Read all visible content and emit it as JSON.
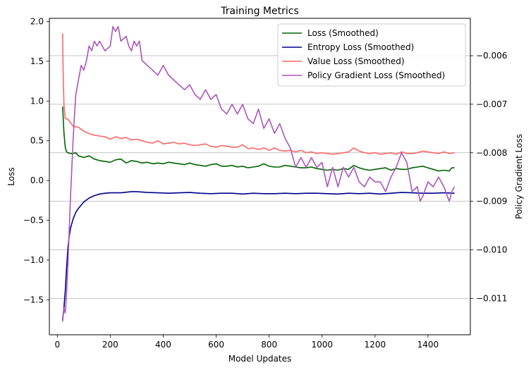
{
  "chart_data": {
    "type": "line",
    "title": "Training Metrics",
    "xlabel": "Model Updates",
    "ylabel_left": "Loss",
    "ylabel_right": "Policy Gradient Loss",
    "xlim": [
      -30,
      1560
    ],
    "ylim_left": [
      -1.94,
      2.04
    ],
    "ylim_right": [
      -0.01175,
      -0.00523
    ],
    "x_ticks": [
      0,
      200,
      400,
      600,
      800,
      1000,
      1200,
      1400
    ],
    "y_left_ticks": [
      -1.5,
      -1.0,
      -0.5,
      0.0,
      0.5,
      1.0,
      1.5,
      2.0
    ],
    "y_right_ticks": [
      -0.011,
      -0.01,
      -0.009,
      -0.008,
      -0.007,
      -0.006
    ],
    "grid": "horizontal lines at right-axis ticks",
    "legend_position": "upper-right",
    "series": [
      {
        "name": "Loss (Smoothed)",
        "axis": "left",
        "color": "#006400",
        "points": [
          [
            20,
            0.93
          ],
          [
            25,
            0.6
          ],
          [
            30,
            0.42
          ],
          [
            35,
            0.36
          ],
          [
            40,
            0.35
          ],
          [
            50,
            0.34
          ],
          [
            60,
            0.34
          ],
          [
            70,
            0.35
          ],
          [
            80,
            0.31
          ],
          [
            100,
            0.29
          ],
          [
            120,
            0.31
          ],
          [
            140,
            0.27
          ],
          [
            160,
            0.25
          ],
          [
            180,
            0.24
          ],
          [
            200,
            0.23
          ],
          [
            220,
            0.26
          ],
          [
            240,
            0.27
          ],
          [
            260,
            0.22
          ],
          [
            280,
            0.25
          ],
          [
            300,
            0.24
          ],
          [
            320,
            0.22
          ],
          [
            340,
            0.23
          ],
          [
            360,
            0.21
          ],
          [
            380,
            0.22
          ],
          [
            400,
            0.21
          ],
          [
            420,
            0.23
          ],
          [
            440,
            0.22
          ],
          [
            460,
            0.21
          ],
          [
            480,
            0.2
          ],
          [
            500,
            0.22
          ],
          [
            520,
            0.2
          ],
          [
            540,
            0.19
          ],
          [
            560,
            0.18
          ],
          [
            580,
            0.2
          ],
          [
            600,
            0.21
          ],
          [
            620,
            0.18
          ],
          [
            640,
            0.18
          ],
          [
            660,
            0.19
          ],
          [
            680,
            0.17
          ],
          [
            700,
            0.18
          ],
          [
            720,
            0.16
          ],
          [
            740,
            0.17
          ],
          [
            760,
            0.18
          ],
          [
            780,
            0.21
          ],
          [
            800,
            0.18
          ],
          [
            820,
            0.17
          ],
          [
            840,
            0.17
          ],
          [
            860,
            0.19
          ],
          [
            880,
            0.18
          ],
          [
            900,
            0.17
          ],
          [
            920,
            0.16
          ],
          [
            940,
            0.16
          ],
          [
            960,
            0.17
          ],
          [
            980,
            0.15
          ],
          [
            1000,
            0.14
          ],
          [
            1020,
            0.13
          ],
          [
            1040,
            0.14
          ],
          [
            1060,
            0.13
          ],
          [
            1080,
            0.15
          ],
          [
            1100,
            0.14
          ],
          [
            1120,
            0.19
          ],
          [
            1140,
            0.16
          ],
          [
            1160,
            0.14
          ],
          [
            1180,
            0.13
          ],
          [
            1200,
            0.14
          ],
          [
            1220,
            0.15
          ],
          [
            1240,
            0.16
          ],
          [
            1260,
            0.13
          ],
          [
            1280,
            0.15
          ],
          [
            1300,
            0.14
          ],
          [
            1320,
            0.14
          ],
          [
            1340,
            0.16
          ],
          [
            1360,
            0.17
          ],
          [
            1380,
            0.18
          ],
          [
            1400,
            0.16
          ],
          [
            1420,
            0.14
          ],
          [
            1440,
            0.12
          ],
          [
            1460,
            0.13
          ],
          [
            1480,
            0.12
          ],
          [
            1490,
            0.16
          ],
          [
            1500,
            0.16
          ]
        ]
      },
      {
        "name": "Entropy Loss (Smoothed)",
        "axis": "left",
        "color": "#00008B",
        "points": [
          [
            20,
            -1.75
          ],
          [
            25,
            -1.6
          ],
          [
            30,
            -1.4
          ],
          [
            35,
            -1.1
          ],
          [
            40,
            -0.85
          ],
          [
            45,
            -0.7
          ],
          [
            50,
            -0.6
          ],
          [
            60,
            -0.48
          ],
          [
            70,
            -0.4
          ],
          [
            80,
            -0.35
          ],
          [
            90,
            -0.31
          ],
          [
            100,
            -0.27
          ],
          [
            120,
            -0.22
          ],
          [
            140,
            -0.19
          ],
          [
            160,
            -0.17
          ],
          [
            180,
            -0.16
          ],
          [
            200,
            -0.155
          ],
          [
            240,
            -0.155
          ],
          [
            280,
            -0.14
          ],
          [
            300,
            -0.14
          ],
          [
            340,
            -0.15
          ],
          [
            380,
            -0.155
          ],
          [
            420,
            -0.16
          ],
          [
            460,
            -0.155
          ],
          [
            500,
            -0.15
          ],
          [
            540,
            -0.16
          ],
          [
            580,
            -0.165
          ],
          [
            620,
            -0.16
          ],
          [
            660,
            -0.16
          ],
          [
            700,
            -0.17
          ],
          [
            740,
            -0.16
          ],
          [
            780,
            -0.165
          ],
          [
            820,
            -0.165
          ],
          [
            860,
            -0.16
          ],
          [
            900,
            -0.165
          ],
          [
            940,
            -0.16
          ],
          [
            980,
            -0.16
          ],
          [
            1020,
            -0.165
          ],
          [
            1060,
            -0.17
          ],
          [
            1100,
            -0.16
          ],
          [
            1140,
            -0.165
          ],
          [
            1180,
            -0.16
          ],
          [
            1220,
            -0.17
          ],
          [
            1260,
            -0.16
          ],
          [
            1300,
            -0.15
          ],
          [
            1340,
            -0.155
          ],
          [
            1380,
            -0.16
          ],
          [
            1420,
            -0.16
          ],
          [
            1460,
            -0.155
          ],
          [
            1500,
            -0.16
          ]
        ]
      },
      {
        "name": "Value Loss (Smoothed)",
        "axis": "left",
        "color": "#FF6666",
        "points": [
          [
            20,
            1.85
          ],
          [
            22,
            1.4
          ],
          [
            25,
            0.95
          ],
          [
            30,
            0.78
          ],
          [
            40,
            0.77
          ],
          [
            50,
            0.73
          ],
          [
            60,
            0.68
          ],
          [
            80,
            0.67
          ],
          [
            100,
            0.62
          ],
          [
            120,
            0.59
          ],
          [
            140,
            0.57
          ],
          [
            160,
            0.56
          ],
          [
            180,
            0.55
          ],
          [
            200,
            0.52
          ],
          [
            220,
            0.55
          ],
          [
            240,
            0.53
          ],
          [
            260,
            0.54
          ],
          [
            280,
            0.51
          ],
          [
            300,
            0.52
          ],
          [
            320,
            0.5
          ],
          [
            340,
            0.48
          ],
          [
            360,
            0.47
          ],
          [
            380,
            0.5
          ],
          [
            400,
            0.46
          ],
          [
            420,
            0.47
          ],
          [
            440,
            0.48
          ],
          [
            460,
            0.46
          ],
          [
            480,
            0.47
          ],
          [
            500,
            0.45
          ],
          [
            520,
            0.44
          ],
          [
            540,
            0.45
          ],
          [
            560,
            0.46
          ],
          [
            580,
            0.43
          ],
          [
            600,
            0.42
          ],
          [
            620,
            0.44
          ],
          [
            640,
            0.43
          ],
          [
            660,
            0.42
          ],
          [
            680,
            0.42
          ],
          [
            700,
            0.45
          ],
          [
            720,
            0.4
          ],
          [
            740,
            0.41
          ],
          [
            760,
            0.39
          ],
          [
            780,
            0.41
          ],
          [
            800,
            0.38
          ],
          [
            820,
            0.41
          ],
          [
            840,
            0.38
          ],
          [
            860,
            0.37
          ],
          [
            880,
            0.38
          ],
          [
            900,
            0.36
          ],
          [
            920,
            0.38
          ],
          [
            940,
            0.35
          ],
          [
            960,
            0.36
          ],
          [
            980,
            0.34
          ],
          [
            1000,
            0.35
          ],
          [
            1020,
            0.34
          ],
          [
            1040,
            0.33
          ],
          [
            1060,
            0.34
          ],
          [
            1080,
            0.35
          ],
          [
            1100,
            0.36
          ],
          [
            1120,
            0.41
          ],
          [
            1140,
            0.37
          ],
          [
            1160,
            0.35
          ],
          [
            1180,
            0.34
          ],
          [
            1200,
            0.35
          ],
          [
            1220,
            0.33
          ],
          [
            1240,
            0.34
          ],
          [
            1260,
            0.35
          ],
          [
            1280,
            0.33
          ],
          [
            1300,
            0.36
          ],
          [
            1320,
            0.34
          ],
          [
            1340,
            0.34
          ],
          [
            1360,
            0.35
          ],
          [
            1380,
            0.37
          ],
          [
            1400,
            0.36
          ],
          [
            1420,
            0.35
          ],
          [
            1440,
            0.34
          ],
          [
            1460,
            0.36
          ],
          [
            1480,
            0.34
          ],
          [
            1500,
            0.35
          ]
        ]
      },
      {
        "name": "Policy Gradient Loss (Smoothed)",
        "axis": "right",
        "color": "#AA55BB",
        "points": [
          [
            20,
            -0.01148
          ],
          [
            25,
            -0.0112
          ],
          [
            30,
            -0.0113
          ],
          [
            35,
            -0.0109
          ],
          [
            40,
            -0.0103
          ],
          [
            45,
            -0.0096
          ],
          [
            50,
            -0.0089
          ],
          [
            55,
            -0.0083
          ],
          [
            60,
            -0.0077
          ],
          [
            65,
            -0.0072
          ],
          [
            70,
            -0.0068
          ],
          [
            80,
            -0.0065
          ],
          [
            90,
            -0.0062
          ],
          [
            100,
            -0.0063
          ],
          [
            110,
            -0.0061
          ],
          [
            120,
            -0.0058
          ],
          [
            130,
            -0.0059
          ],
          [
            140,
            -0.0057
          ],
          [
            150,
            -0.0058
          ],
          [
            160,
            -0.0057
          ],
          [
            180,
            -0.0059
          ],
          [
            200,
            -0.0058
          ],
          [
            210,
            -0.0054
          ],
          [
            220,
            -0.0055
          ],
          [
            230,
            -0.0054
          ],
          [
            240,
            -0.0057
          ],
          [
            260,
            -0.0056
          ],
          [
            270,
            -0.0058
          ],
          [
            280,
            -0.0059
          ],
          [
            290,
            -0.0057
          ],
          [
            300,
            -0.0058
          ],
          [
            310,
            -0.0057
          ],
          [
            320,
            -0.0061
          ],
          [
            340,
            -0.0062
          ],
          [
            360,
            -0.0063
          ],
          [
            380,
            -0.0064
          ],
          [
            400,
            -0.0062
          ],
          [
            420,
            -0.0064
          ],
          [
            440,
            -0.0065
          ],
          [
            460,
            -0.0066
          ],
          [
            480,
            -0.0067
          ],
          [
            500,
            -0.0066
          ],
          [
            520,
            -0.0068
          ],
          [
            540,
            -0.0069
          ],
          [
            560,
            -0.0067
          ],
          [
            580,
            -0.0069
          ],
          [
            600,
            -0.0068
          ],
          [
            620,
            -0.0071
          ],
          [
            640,
            -0.0072
          ],
          [
            660,
            -0.007
          ],
          [
            680,
            -0.0072
          ],
          [
            700,
            -0.007
          ],
          [
            720,
            -0.0073
          ],
          [
            740,
            -0.0074
          ],
          [
            760,
            -0.0071
          ],
          [
            780,
            -0.0075
          ],
          [
            800,
            -0.0073
          ],
          [
            820,
            -0.0076
          ],
          [
            840,
            -0.0074
          ],
          [
            860,
            -0.0077
          ],
          [
            880,
            -0.0079
          ],
          [
            900,
            -0.0083
          ],
          [
            920,
            -0.0081
          ],
          [
            940,
            -0.0083
          ],
          [
            960,
            -0.0081
          ],
          [
            980,
            -0.0083
          ],
          [
            1000,
            -0.0082
          ],
          [
            1020,
            -0.0087
          ],
          [
            1040,
            -0.0083
          ],
          [
            1060,
            -0.0087
          ],
          [
            1080,
            -0.0083
          ],
          [
            1100,
            -0.0085
          ],
          [
            1120,
            -0.0083
          ],
          [
            1140,
            -0.0086
          ],
          [
            1160,
            -0.0087
          ],
          [
            1180,
            -0.0085
          ],
          [
            1200,
            -0.0086
          ],
          [
            1220,
            -0.0086
          ],
          [
            1240,
            -0.0088
          ],
          [
            1260,
            -0.0085
          ],
          [
            1280,
            -0.0083
          ],
          [
            1300,
            -0.008
          ],
          [
            1320,
            -0.0082
          ],
          [
            1340,
            -0.0088
          ],
          [
            1360,
            -0.0087
          ],
          [
            1370,
            -0.009
          ],
          [
            1380,
            -0.0089
          ],
          [
            1400,
            -0.0086
          ],
          [
            1420,
            -0.0087
          ],
          [
            1440,
            -0.0085
          ],
          [
            1460,
            -0.0087
          ],
          [
            1480,
            -0.009
          ],
          [
            1490,
            -0.0088
          ],
          [
            1500,
            -0.0087
          ]
        ]
      }
    ]
  }
}
